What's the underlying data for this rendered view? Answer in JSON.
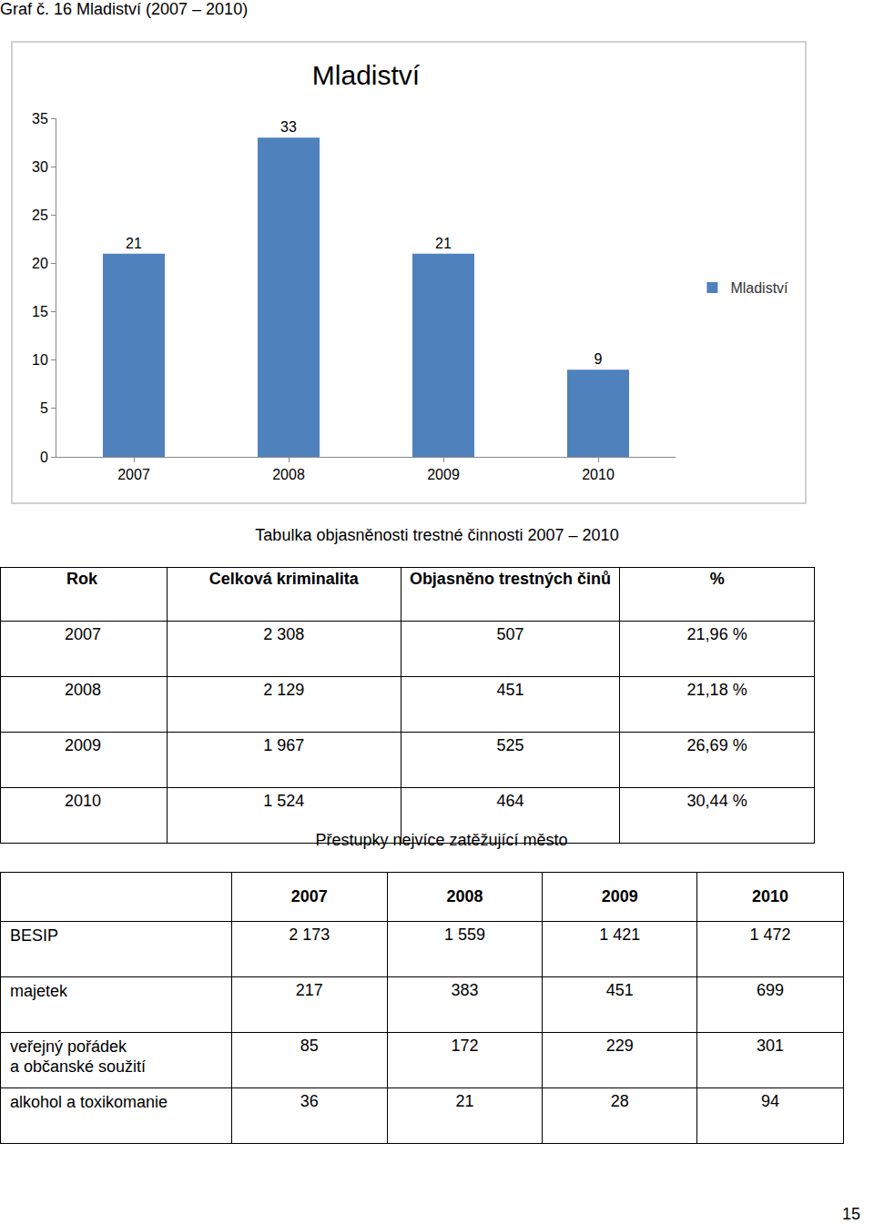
{
  "caption": "Graf č. 16 Mladiství (2007 – 2010)",
  "chart_data": {
    "type": "bar",
    "title": "Mladiství",
    "categories": [
      "2007",
      "2008",
      "2009",
      "2010"
    ],
    "series": [
      {
        "name": "Mladiství",
        "color": "#4f81bd",
        "values": [
          21,
          33,
          21,
          9
        ]
      }
    ],
    "ylim": [
      0,
      35
    ],
    "yticks": [
      0,
      5,
      10,
      15,
      20,
      25,
      30,
      35
    ],
    "grid": false,
    "legend": "right",
    "data_labels": true
  },
  "table1": {
    "title": "Tabulka objasněnosti trestné činnosti 2007 – 2010",
    "header": [
      "Rok",
      "Celková kriminalita",
      "Objasněno trestných činů",
      "%"
    ],
    "rows": [
      [
        "2007",
        "2 308",
        "507",
        "21,96 %"
      ],
      [
        "2008",
        "2 129",
        "451",
        "21,18 %"
      ],
      [
        "2009",
        "1 967",
        "525",
        "26,69 %"
      ],
      [
        "2010",
        "1 524",
        "464",
        "30,44 %"
      ]
    ]
  },
  "table2": {
    "title": "Přestupky nejvíce zatěžující město",
    "columns": [
      "2007",
      "2008",
      "2009",
      "2010"
    ],
    "rows": [
      {
        "label": "BESIP",
        "values": [
          "2 173",
          "1 559",
          "1 421",
          "1 472"
        ]
      },
      {
        "label": "majetek",
        "values": [
          "217",
          "383",
          "451",
          "699"
        ]
      },
      {
        "label": "veřejný pořádek\na občanské soužití",
        "values": [
          "85",
          "172",
          "229",
          "301"
        ]
      },
      {
        "label": "alkohol a toxikomanie",
        "values": [
          "36",
          "21",
          "28",
          "94"
        ]
      }
    ]
  },
  "page_number": "15"
}
